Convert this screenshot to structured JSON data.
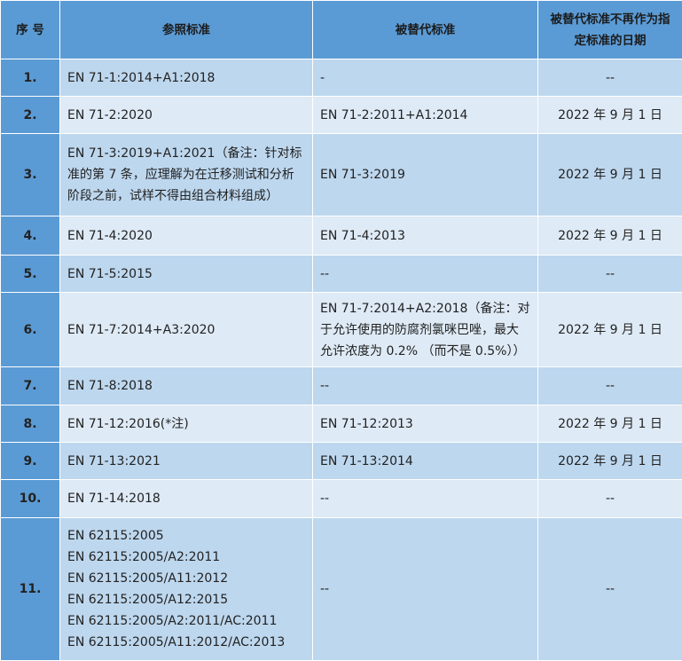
{
  "table": {
    "header": [
      "序 号",
      "参照标准",
      "被替代标准",
      "被替代标准不再作为指定标准的日期"
    ],
    "rows": [
      [
        "1.",
        "EN 71-1:2014+A1:2018",
        "-",
        "--"
      ],
      [
        "2.",
        "EN 71-2:2020",
        "EN 71-2:2011+A1:2014",
        "2022 年 9 月 1 日"
      ],
      [
        "3.",
        "EN 71-3:2019+A1:2021（备注：针对标准的第 7 条，应理解为在迁移测试和分析阶段之前，试样不得由组合材料组成）",
        "EN 71-3:2019",
        "2022 年 9 月 1 日"
      ],
      [
        "4.",
        "EN 71-4:2020",
        "EN 71-4:2013",
        "2022 年 9 月 1 日"
      ],
      [
        "5.",
        "EN 71-5:2015",
        "--",
        "--"
      ],
      [
        "6.",
        "EN 71-7:2014+A3:2020",
        "EN 71-7:2014+A2:2018（备注：对于允许使用的防腐剂氯咪巴唑，最大允许浓度为 0.2% （而不是 0.5%））",
        "2022 年 9 月 1 日"
      ],
      [
        "7.",
        "EN 71-8:2018",
        "--",
        "--"
      ],
      [
        "8.",
        "EN 71-12:2016(*注)",
        "EN 71-12:2013",
        "2022 年 9 月 1 日"
      ],
      [
        "9.",
        "EN 71-13:2021",
        "EN 71-13:2014",
        "2022 年 9 月 1 日"
      ],
      [
        "10.",
        "EN 71-14:2018",
        "--",
        "--"
      ],
      [
        "11.",
        [
          "EN 62115:2005",
          "EN 62115:2005/A2:2011",
          "EN 62115:2005/A11:2012",
          "EN 62115:2005/A12:2015",
          "EN 62115:2005/A2:2011/AC:2011",
          "EN 62115:2005/A11:2012/AC:2013"
        ],
        "--",
        "--"
      ]
    ]
  }
}
